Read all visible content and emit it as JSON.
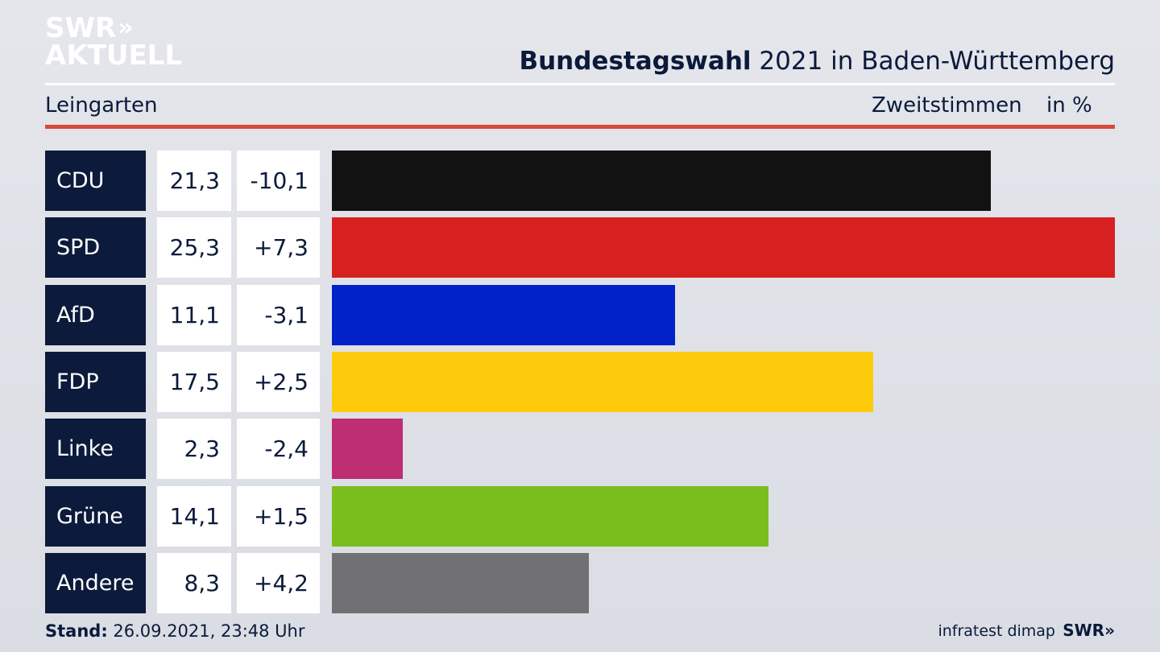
{
  "logo": {
    "line1": "SWR",
    "chevrons": "»",
    "line2": "AKTUELL"
  },
  "header": {
    "title_bold": "Bundestagswahl",
    "title_rest": " 2021 in Baden-Württemberg",
    "region": "Leingarten",
    "vote_type": "Zweitstimmen",
    "unit": "in %"
  },
  "chart_data": {
    "type": "bar",
    "orientation": "horizontal",
    "categories": [
      "CDU",
      "SPD",
      "AfD",
      "FDP",
      "Linke",
      "Grüne",
      "Andere"
    ],
    "values": [
      21.3,
      25.3,
      11.1,
      17.5,
      2.3,
      14.1,
      8.3
    ],
    "value_labels": [
      "21,3",
      "25,3",
      "11,1",
      "17,5",
      "2,3",
      "14,1",
      "8,3"
    ],
    "diff_labels": [
      "-10,1",
      "+7,3",
      "-3,1",
      "+2,5",
      "-2,4",
      "+1,5",
      "+4,2"
    ],
    "colors": [
      "#121212",
      "#d72020",
      "#0022c7",
      "#fdcb0b",
      "#be2e72",
      "#79be1c",
      "#717173"
    ],
    "xlim": [
      0,
      25.3
    ],
    "title": "Bundestagswahl 2021 in Baden-Württemberg",
    "grid": false
  },
  "footer": {
    "stand_label": "Stand:",
    "stand_value": " 26.09.2021, 23:48 Uhr",
    "source": "infratest dimap",
    "brand": "SWR»"
  }
}
